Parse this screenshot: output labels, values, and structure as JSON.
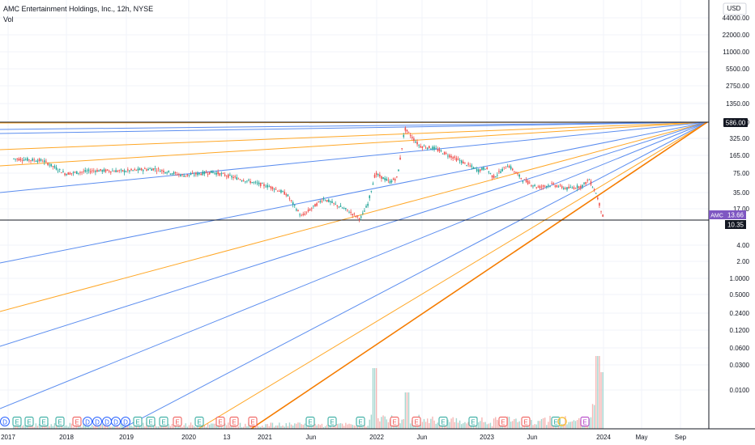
{
  "header": {
    "title": "AMC Entertainment Holdings, Inc., 12h, NYSE",
    "volume_label": "Vol",
    "currency": "USD"
  },
  "chart_data": {
    "type": "candlestick",
    "scale": "log",
    "y_ticks": [
      "44000.00",
      "22000.00",
      "11000.00",
      "5500.00",
      "2750.00",
      "1350.00",
      "586.00",
      "325.00",
      "165.00",
      "75.00",
      "35.00",
      "17.00",
      "4.00",
      "2.00",
      "1.0000",
      "0.5000",
      "0.2400",
      "0.1200",
      "0.0600",
      "0.0300",
      "0.0100"
    ],
    "x_ticks": [
      "2017",
      "2018",
      "2019",
      "2020",
      "13",
      "2021",
      "Jun",
      "2022",
      "Jun",
      "2023",
      "Jun",
      "2024",
      "May",
      "Sep"
    ],
    "badges": [
      {
        "label": "586.00",
        "color": "#131722",
        "text_color": "#ffffff"
      },
      {
        "label": "AMC",
        "value": "13.66",
        "color": "#7e57c2",
        "text_color": "#ffffff"
      },
      {
        "label": "10.35",
        "color": "#131722",
        "text_color": "#ffffff"
      }
    ],
    "horizontal_levels": [
      586,
      10.35
    ],
    "apex": {
      "date": "2024-11",
      "price": 586
    },
    "price_series": [
      {
        "date": "2017-01",
        "price": 130
      },
      {
        "date": "2017-05",
        "price": 120
      },
      {
        "date": "2017-08",
        "price": 70
      },
      {
        "date": "2017-12",
        "price": 80
      },
      {
        "date": "2018-04",
        "price": 78
      },
      {
        "date": "2018-08",
        "price": 86
      },
      {
        "date": "2018-12",
        "price": 65
      },
      {
        "date": "2019-04",
        "price": 75
      },
      {
        "date": "2019-08",
        "price": 55
      },
      {
        "date": "2019-12",
        "price": 40
      },
      {
        "date": "2020-02",
        "price": 30
      },
      {
        "date": "2020-04",
        "price": 12
      },
      {
        "date": "2020-07",
        "price": 25
      },
      {
        "date": "2020-10",
        "price": 16
      },
      {
        "date": "2020-12",
        "price": 11
      },
      {
        "date": "2021-01",
        "price": 20
      },
      {
        "date": "2021-02",
        "price": 70
      },
      {
        "date": "2021-04",
        "price": 50
      },
      {
        "date": "2021-05",
        "price": 60
      },
      {
        "date": "2021-06",
        "price": 450
      },
      {
        "date": "2021-08",
        "price": 220
      },
      {
        "date": "2021-10",
        "price": 200
      },
      {
        "date": "2021-12",
        "price": 150
      },
      {
        "date": "2022-02",
        "price": 110
      },
      {
        "date": "2022-04",
        "price": 80
      },
      {
        "date": "2022-05",
        "price": 90
      },
      {
        "date": "2022-06",
        "price": 60
      },
      {
        "date": "2022-08",
        "price": 100
      },
      {
        "date": "2022-10",
        "price": 55
      },
      {
        "date": "2022-12",
        "price": 40
      },
      {
        "date": "2023-02",
        "price": 45
      },
      {
        "date": "2023-04",
        "price": 38
      },
      {
        "date": "2023-06",
        "price": 42
      },
      {
        "date": "2023-07",
        "price": 55
      },
      {
        "date": "2023-08",
        "price": 30
      },
      {
        "date": "2023-09",
        "price": 10.35
      }
    ],
    "fan_colors": [
      "#5b8def",
      "#ffa726",
      "#f57c00"
    ],
    "earnings_marker_label": "E",
    "dividend_marker_label": "D"
  }
}
